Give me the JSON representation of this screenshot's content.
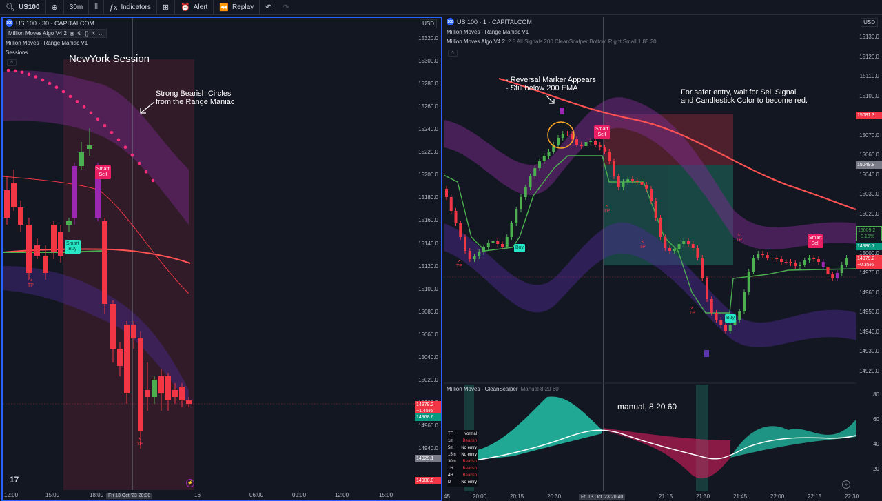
{
  "toolbar": {
    "symbol": "US100",
    "interval": "30m",
    "indicators": "Indicators",
    "alert": "Alert",
    "replay": "Replay"
  },
  "left": {
    "title": "US 100 · 30 · CAPITALCOM",
    "ind1": "Million Moves Algo V4.2",
    "ind2": "Million Moves - Range Maniac V1",
    "ind3": "Sessions",
    "session_label": "NewYork Session",
    "annotation_line1": "Strong Bearish Circles",
    "annotation_line2": "from the Range Maniac",
    "smart_sell": [
      "Smart",
      "Sell"
    ],
    "smart_buy": [
      "Smart",
      "Buy"
    ],
    "tp1": "TP",
    "tp2": "TP",
    "currency": "USD",
    "price_ticks": [
      "15320.0",
      "15300.0",
      "15280.0",
      "15260.0",
      "15240.0",
      "15220.0",
      "15200.0",
      "15180.0",
      "15160.0",
      "15140.0",
      "15120.0",
      "15100.0",
      "15080.0",
      "15060.0",
      "15040.0",
      "15020.0",
      "15000.0",
      "14960.0",
      "14940.0"
    ],
    "tag_price": "14979.2",
    "tag_pct": "−1.45%",
    "tag_green": "14968.6",
    "tag_gray": "14929.1",
    "tag_red2": "14908.0",
    "time_ticks": [
      "12:00",
      "15:00",
      "18:00",
      "16",
      "06:00",
      "09:00",
      "12:00",
      "15:00"
    ],
    "time_cross": "Fri 13 Oct '23  20:30"
  },
  "right": {
    "title": "US 100 · 1 · CAPITALCOM",
    "ind1": "Million Moves - Range Maniac V1",
    "ind2": "Million Moves Algo V4.2",
    "ind2_params": "2.5 All Signals 200 CleanScalper Bottom Right Small 1.85 20",
    "annotation1_line1": "- Reversal Marker Appears",
    "annotation1_line2": "- Still below 200 EMA",
    "annotation2_line1": "For safer entry, wait for Sell Signal",
    "annotation2_line2": "and Candlestick Color to become red.",
    "smart_sell_1": [
      "Smart",
      "Sell"
    ],
    "smart_sell_2": [
      "Smart",
      "Sell"
    ],
    "buy_1": "Buy",
    "buy_2": "Buy",
    "tp_labels": [
      "TP",
      "TP",
      "TP",
      "TP",
      "TP"
    ],
    "currency": "USD",
    "price_ticks": [
      "15130.0",
      "15120.0",
      "15110.0",
      "15100.0",
      "15090.0",
      "15070.0",
      "15060.0",
      "15040.0",
      "15030.0",
      "15020.0",
      "15010.0",
      "15000.0",
      "14970.0",
      "14960.0",
      "14950.0",
      "14940.0",
      "14930.0",
      "14920.0"
    ],
    "tag_top": "15081.3",
    "tag_mid": "15049.8",
    "tag_green1": "15009.2",
    "tag_green1_pct": "−0.15%",
    "tag_green2": "14986.7",
    "tag_red": "14979.2",
    "tag_red_pct": "−0.35%",
    "sub_title": "Million Moves - CleanScalper",
    "sub_params": "Manual 8 20 60",
    "sub_annotation": "manual, 8 20 60",
    "sub_ticks": [
      "80",
      "60",
      "40",
      "20"
    ],
    "time_ticks": [
      "45",
      "20:00",
      "20:15",
      "20:30",
      "21:15",
      "21:30",
      "21:45",
      "22:00",
      "22:15",
      "22:30"
    ],
    "time_cross": "Fri 13 Oct '23  20:40"
  },
  "tf_table": {
    "header": [
      "TF",
      "Normal"
    ],
    "rows": [
      {
        "tf": "1m",
        "v": "Bearish",
        "bear": true
      },
      {
        "tf": "5m",
        "v": "No entry",
        "bear": false
      },
      {
        "tf": "15m",
        "v": "No entry",
        "bear": false
      },
      {
        "tf": "30m",
        "v": "Bearish",
        "bear": true
      },
      {
        "tf": "1H",
        "v": "Bearish",
        "bear": true
      },
      {
        "tf": "4H",
        "v": "Bearish",
        "bear": true
      },
      {
        "tf": "D",
        "v": "No entry",
        "bear": false
      }
    ]
  },
  "colors": {
    "bg": "#131722",
    "bull": "#4caf50",
    "bear": "#f23645",
    "purple_band": "#7b2a8c",
    "accent": "#2962ff"
  }
}
